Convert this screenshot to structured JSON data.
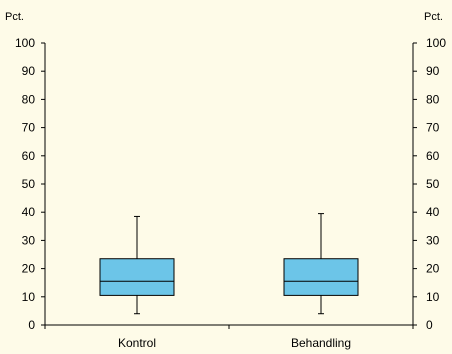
{
  "chart_data": {
    "type": "boxplot",
    "title": "",
    "xlabel": "",
    "ylabel": "",
    "y_unit_left": "Pct.",
    "y_unit_right": "Pct.",
    "ylim": [
      0,
      100
    ],
    "yticks": [
      0,
      10,
      20,
      30,
      40,
      50,
      60,
      70,
      80,
      90,
      100
    ],
    "ytick_labels": [
      "0",
      "10",
      "20",
      "30",
      "40",
      "50",
      "60",
      "70",
      "80",
      "90",
      "100"
    ],
    "grid": false,
    "legend": "none",
    "box_color": "#6cc5e8",
    "background_color": "#fefbe8",
    "categories": [
      "Kontrol",
      "Behandling"
    ],
    "series": [
      {
        "whisker_low": 4,
        "q1": 10.5,
        "median": 15.5,
        "q3": 23.5,
        "whisker_high": 38.5
      },
      {
        "whisker_low": 4,
        "q1": 10.5,
        "median": 15.5,
        "q3": 23.5,
        "whisker_high": 39.5
      }
    ]
  }
}
